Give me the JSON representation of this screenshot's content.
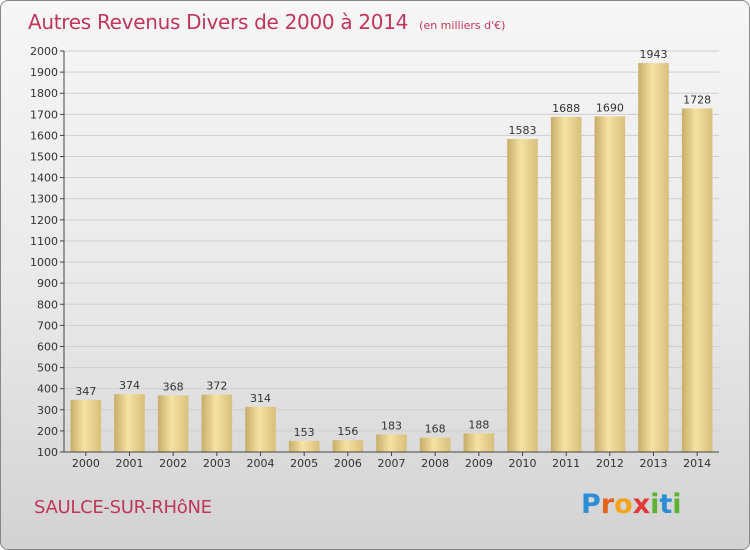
{
  "header": {
    "title": "Autres Revenus Divers de 2000 à 2014",
    "subtitle": "(en milliers d'€)"
  },
  "footer": {
    "place": "SAULCE-SUR-RHôNE",
    "logo": "Proxiti"
  },
  "colors": {
    "title": "#c0365a",
    "bar_light": "#f6e2a4",
    "bar_dark": "#c7ad68",
    "axis": "#444444",
    "grid": "#cfcfcf"
  },
  "chart_data": {
    "type": "bar",
    "title": "Autres Revenus Divers de 2000 à 2014",
    "subtitle": "(en milliers d'€)",
    "categories": [
      "2000",
      "2001",
      "2002",
      "2003",
      "2004",
      "2005",
      "2006",
      "2007",
      "2008",
      "2009",
      "2010",
      "2011",
      "2012",
      "2013",
      "2014"
    ],
    "values": [
      347,
      374,
      368,
      372,
      314,
      153,
      156,
      183,
      168,
      188,
      1583,
      1688,
      1690,
      1943,
      1728
    ],
    "ylim": [
      100,
      2000
    ],
    "yticks": [
      100,
      200,
      300,
      400,
      500,
      600,
      700,
      800,
      900,
      1000,
      1100,
      1200,
      1300,
      1400,
      1500,
      1600,
      1700,
      1800,
      1900,
      2000
    ],
    "xlabel": "",
    "ylabel": "",
    "grid": true,
    "legend": "none"
  }
}
